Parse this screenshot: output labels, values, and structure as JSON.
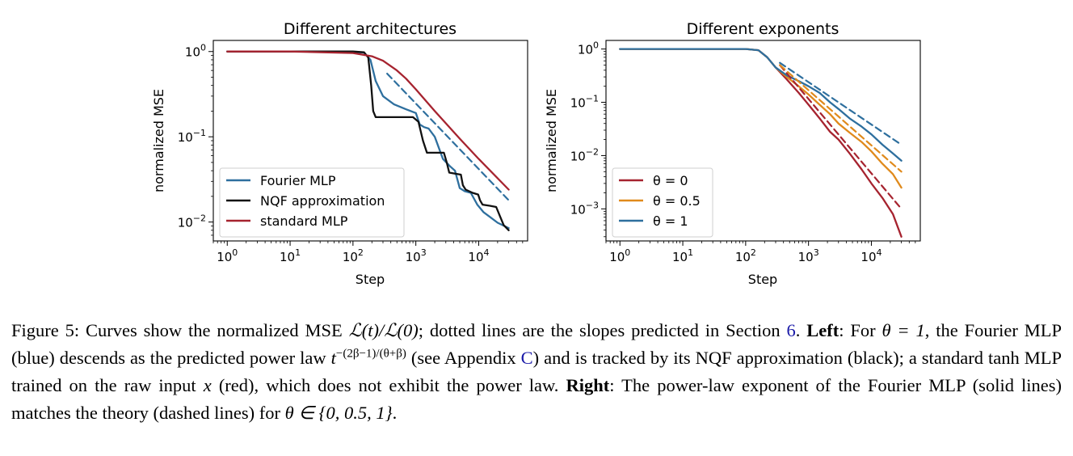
{
  "figure": {
    "caption": {
      "label": "Figure 5:",
      "s1": "Curves show the normalized MSE",
      "loss_expr": "ℒ(t)/ℒ(0)",
      "s2": "; dotted lines are the slopes predicted in Section",
      "section_ref": "6",
      "s3": ".",
      "left_bold": "Left",
      "s4": ": For",
      "theta_eq": "θ = 1",
      "s5": ", the Fourier MLP (blue) descends as the predicted power law",
      "power_base": "t",
      "power_exp": "−(2β−1)/(θ+β)",
      "s6": "(see Appendix",
      "appendix_ref": "C",
      "s7": ") and is tracked by its NQF approximation (black); a standard tanh MLP trained on the raw input",
      "x_var": "x",
      "s8": "(red), which does not exhibit the power law.",
      "right_bold": "Right",
      "s9": ": The power-law exponent of the Fourier MLP (solid lines) matches the theory (dashed lines) for",
      "theta_set": "θ ∈ {0, 0.5, 1}",
      "s10": "."
    }
  },
  "chart_data": [
    {
      "type": "line",
      "title": "Different architectures",
      "xlabel": "Step",
      "ylabel": "normalized MSE",
      "x_scale": "log",
      "y_scale": "log",
      "xlim": [
        0.6,
        60000
      ],
      "ylim": [
        0.006,
        1.35
      ],
      "x_ticks": [
        {
          "base": "10",
          "exp": "0",
          "value": 1
        },
        {
          "base": "10",
          "exp": "1",
          "value": 10
        },
        {
          "base": "10",
          "exp": "2",
          "value": 100
        },
        {
          "base": "10",
          "exp": "3",
          "value": 1000
        },
        {
          "base": "10",
          "exp": "4",
          "value": 10000
        }
      ],
      "y_ticks": [
        {
          "base": "10",
          "exp": "0",
          "value": 1
        },
        {
          "base": "10",
          "exp": "−1",
          "value": 0.1
        },
        {
          "base": "10",
          "exp": "−2",
          "value": 0.01
        }
      ],
      "legend_position": "lower-left",
      "series": [
        {
          "name": "Fourier MLP",
          "color": "#2e6f9e",
          "style": "solid",
          "x": [
            1,
            10,
            100,
            150,
            190,
            230,
            300,
            450,
            700,
            1000,
            1150,
            1350,
            1600,
            2000,
            2700,
            3500,
            4200,
            5000,
            6000,
            7500,
            9500,
            12000,
            15000,
            20000,
            30000
          ],
          "y": [
            1,
            1,
            0.99,
            0.97,
            0.8,
            0.45,
            0.3,
            0.24,
            0.21,
            0.19,
            0.14,
            0.13,
            0.125,
            0.1,
            0.055,
            0.045,
            0.04,
            0.025,
            0.023,
            0.022,
            0.016,
            0.013,
            0.0115,
            0.0098,
            0.0085
          ]
        },
        {
          "name": "NQF approximation",
          "color": "#111111",
          "style": "solid",
          "x": [
            1,
            10,
            100,
            150,
            175,
            195,
            210,
            230,
            300,
            600,
            900,
            1100,
            1300,
            1500,
            2200,
            2800,
            3100,
            3400,
            4200,
            5200,
            5600,
            6200,
            8000,
            9800,
            10500,
            11500,
            15000,
            19000,
            22000,
            25000,
            30000
          ],
          "y": [
            1,
            1,
            1,
            0.98,
            0.85,
            0.4,
            0.2,
            0.17,
            0.17,
            0.17,
            0.17,
            0.15,
            0.09,
            0.065,
            0.065,
            0.065,
            0.05,
            0.038,
            0.037,
            0.036,
            0.027,
            0.024,
            0.022,
            0.021,
            0.018,
            0.016,
            0.0155,
            0.015,
            0.0115,
            0.0092,
            0.008
          ]
        },
        {
          "name": "standard MLP",
          "color": "#a6232f",
          "style": "solid",
          "x": [
            1,
            10,
            100,
            200,
            300,
            500,
            700,
            1000,
            2000,
            5000,
            10000,
            30000
          ],
          "y": [
            1,
            1,
            0.96,
            0.88,
            0.78,
            0.6,
            0.48,
            0.36,
            0.2,
            0.095,
            0.055,
            0.024
          ]
        },
        {
          "name": "",
          "color": "#2e6f9e",
          "style": "dashed",
          "x": [
            350,
            30000
          ],
          "y": [
            0.55,
            0.018
          ]
        }
      ]
    },
    {
      "type": "line",
      "title": "Different exponents",
      "xlabel": "Step",
      "ylabel": "normalized MSE",
      "x_scale": "log",
      "y_scale": "log",
      "xlim": [
        0.6,
        60000
      ],
      "ylim": [
        0.00025,
        1.45
      ],
      "x_ticks": [
        {
          "base": "10",
          "exp": "0",
          "value": 1
        },
        {
          "base": "10",
          "exp": "1",
          "value": 10
        },
        {
          "base": "10",
          "exp": "2",
          "value": 100
        },
        {
          "base": "10",
          "exp": "3",
          "value": 1000
        },
        {
          "base": "10",
          "exp": "4",
          "value": 10000
        }
      ],
      "y_ticks": [
        {
          "base": "10",
          "exp": "0",
          "value": 1
        },
        {
          "base": "10",
          "exp": "−1",
          "value": 0.1
        },
        {
          "base": "10",
          "exp": "−2",
          "value": 0.01
        },
        {
          "base": "10",
          "exp": "−3",
          "value": 0.001
        }
      ],
      "legend_position": "lower-left",
      "series": [
        {
          "name": "θ = 0",
          "color": "#a6232f",
          "style": "solid",
          "x": [
            1,
            10,
            100,
            160,
            220,
            300,
            450,
            700,
            1000,
            1500,
            2200,
            3000,
            4500,
            7000,
            10000,
            15000,
            22000,
            30000
          ],
          "y": [
            1,
            1,
            1,
            0.95,
            0.7,
            0.45,
            0.27,
            0.15,
            0.09,
            0.05,
            0.028,
            0.02,
            0.011,
            0.0055,
            0.003,
            0.0016,
            0.0008,
            0.0003
          ]
        },
        {
          "name": "θ = 0.5",
          "color": "#e08a1c",
          "style": "solid",
          "x": [
            1,
            10,
            100,
            160,
            220,
            300,
            450,
            700,
            1000,
            1500,
            2200,
            3000,
            4500,
            7000,
            10000,
            15000,
            22000,
            30000
          ],
          "y": [
            1,
            1,
            1,
            0.95,
            0.7,
            0.45,
            0.3,
            0.2,
            0.14,
            0.09,
            0.06,
            0.04,
            0.027,
            0.018,
            0.012,
            0.007,
            0.0045,
            0.0025
          ]
        },
        {
          "name": "θ = 1",
          "color": "#2e6f9e",
          "style": "solid",
          "x": [
            1,
            10,
            100,
            160,
            220,
            300,
            450,
            700,
            1000,
            1500,
            2200,
            3000,
            4500,
            7000,
            10000,
            15000,
            22000,
            30000
          ],
          "y": [
            1,
            1,
            1,
            0.95,
            0.7,
            0.45,
            0.32,
            0.25,
            0.2,
            0.15,
            0.1,
            0.075,
            0.05,
            0.035,
            0.025,
            0.016,
            0.011,
            0.008
          ]
        },
        {
          "name": "",
          "color": "#a6232f",
          "style": "dashed",
          "x": [
            350,
            30000
          ],
          "y": [
            0.5,
            0.001
          ]
        },
        {
          "name": "",
          "color": "#e08a1c",
          "style": "dashed",
          "x": [
            350,
            30000
          ],
          "y": [
            0.5,
            0.005
          ]
        },
        {
          "name": "",
          "color": "#2e6f9e",
          "style": "dashed",
          "x": [
            350,
            30000
          ],
          "y": [
            0.55,
            0.016
          ]
        }
      ]
    }
  ]
}
